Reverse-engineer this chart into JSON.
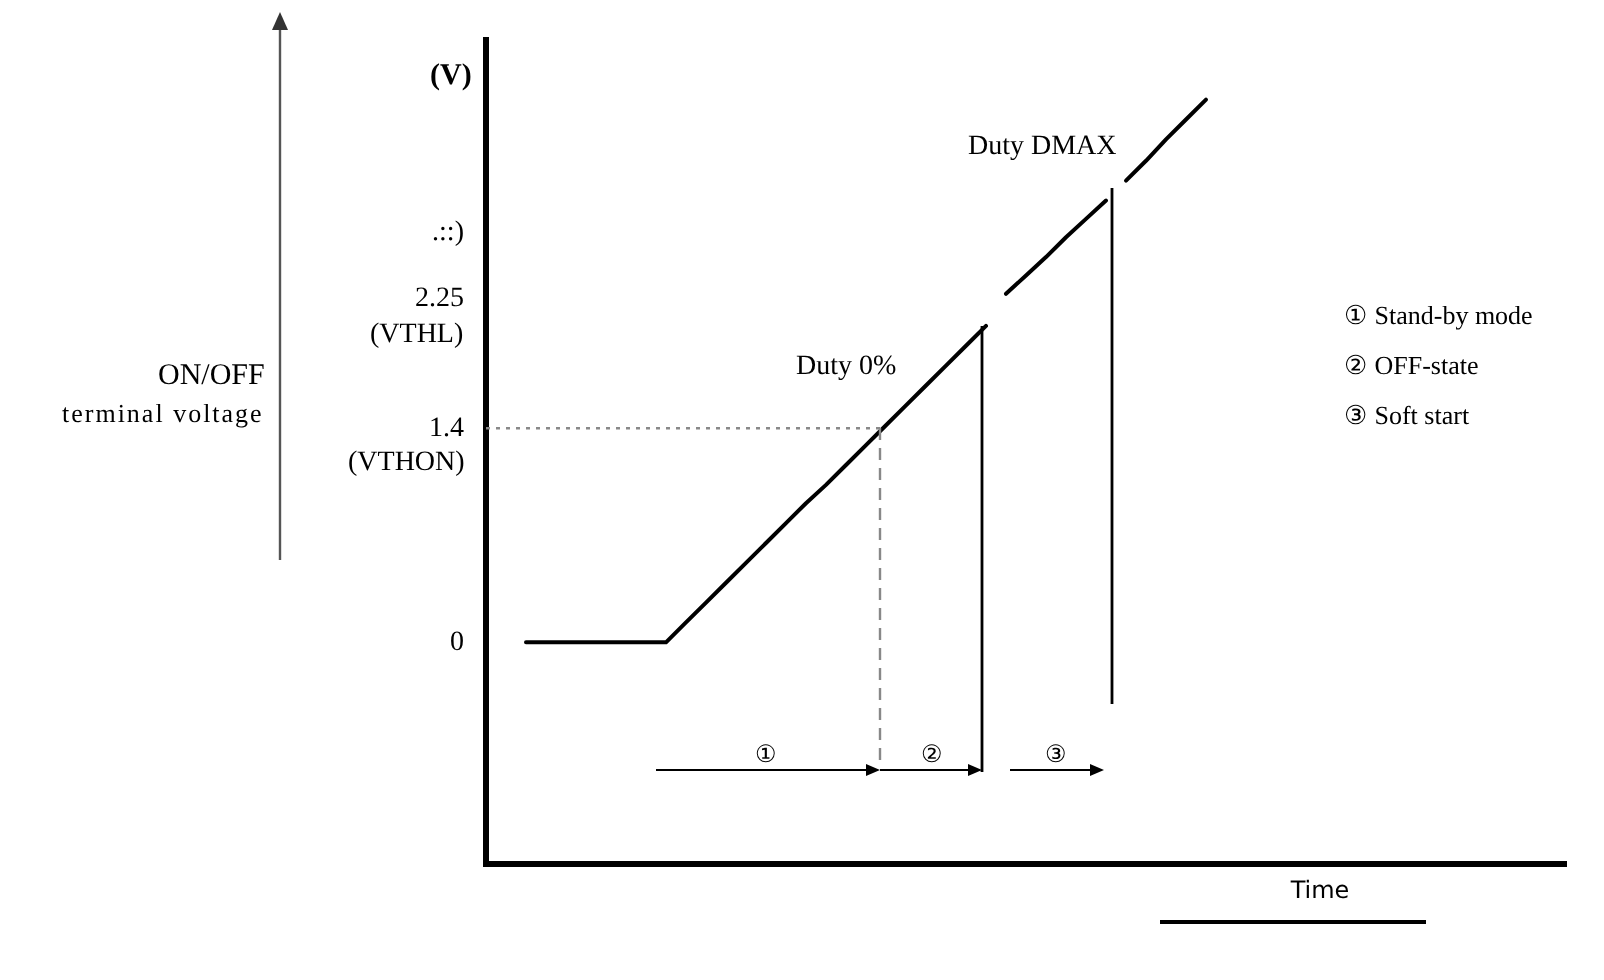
{
  "chart_data": {
    "type": "line",
    "xlabel": "Time",
    "categories": [
      null,
      null,
      null,
      null,
      null,
      null,
      null,
      null,
      null,
      null,
      null,
      null,
      null,
      null,
      null,
      null,
      null,
      null,
      null,
      null,
      null,
      null,
      null,
      null,
      null,
      null,
      null,
      null,
      null,
      null,
      null,
      null,
      null,
      null,
      null,
      null,
      null
    ],
    "series": [
      {
        "color": "#000000",
        "values": [
          null,
          null,
          0,
          0,
          0,
          0,
          0,
          0,
          0,
          0,
          0.13,
          0.26,
          0.39,
          0.52,
          0.65,
          0.78,
          0.91,
          1.03,
          1.16,
          1.29,
          1.42,
          1.55,
          1.68,
          1.81,
          1.94,
          2.07,
          null,
          null,
          null,
          null,
          null,
          null,
          null,
          null,
          null,
          null,
          null
        ]
      },
      {
        "color": "#000000",
        "values": [
          null,
          null,
          null,
          null,
          null,
          null,
          null,
          null,
          null,
          null,
          null,
          null,
          null,
          null,
          null,
          null,
          null,
          null,
          null,
          null,
          null,
          null,
          null,
          null,
          null,
          null,
          2.28,
          2.4,
          2.52,
          2.65,
          2.77,
          2.89,
          null,
          null,
          null,
          null,
          null
        ]
      },
      {
        "color": "#000000",
        "values": [
          null,
          null,
          null,
          null,
          null,
          null,
          null,
          null,
          null,
          null,
          null,
          null,
          null,
          null,
          null,
          null,
          null,
          null,
          null,
          null,
          null,
          null,
          null,
          null,
          null,
          null,
          null,
          null,
          null,
          null,
          null,
          null,
          3.02,
          3.15,
          3.29,
          3.42,
          3.55
        ]
      }
    ],
    "ylim": [
      -1.45,
      3.94
    ],
    "yticks": [
      0,
      1.4,
      2.25,
      {
        "value": 2.68,
        "label": ".::)"
      }
    ],
    "tick_labels": "y",
    "grid": false,
    "legend": false,
    "marker": "none",
    "line_style": "solid",
    "ref_lines": [
      {
        "axis": "y",
        "value": 1.4,
        "label": null,
        "line_style": "dotted",
        "color": "#888888"
      }
    ],
    "annotations": [
      "(V)",
      "ON/OFF",
      "terminal voltage",
      "Duty DMAX",
      "Duty 0%",
      "①",
      "②",
      "③",
      "① Stand-by mode",
      "② OFF-state",
      "③ Soft start",
      "(VTHL)",
      "(VTHON)"
    ]
  }
}
